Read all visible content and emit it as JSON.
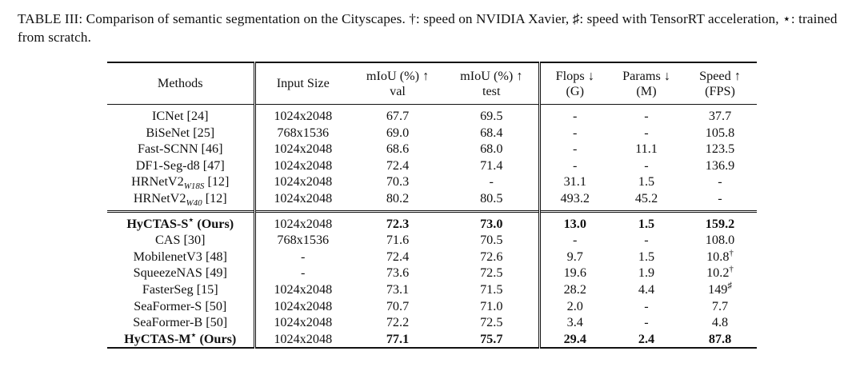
{
  "caption": "TABLE III: Comparison of semantic segmentation on the Cityscapes. †: speed on NVIDIA Xavier, ♯: speed with TensorRT acceleration, ⋆: trained from scratch.",
  "headers": {
    "methods": "Methods",
    "input_size": "Input Size",
    "miou_val_1": "mIoU (%) ↑",
    "miou_val_2": "val",
    "miou_test_1": "mIoU (%) ↑",
    "miou_test_2": "test",
    "flops_1": "Flops ↓",
    "flops_2": "(G)",
    "params_1": "Params ↓",
    "params_2": "(M)",
    "speed_1": "Speed ↑",
    "speed_2": "(FPS)"
  },
  "group1": [
    {
      "method": "ICNet [24]",
      "input": "1024x2048",
      "val": "67.7",
      "test": "69.5",
      "flops": "-",
      "params": "-",
      "speed": "37.7"
    },
    {
      "method": "BiSeNet [25]",
      "input": "768x1536",
      "val": "69.0",
      "test": "68.4",
      "flops": "-",
      "params": "-",
      "speed": "105.8"
    },
    {
      "method": "Fast-SCNN [46]",
      "input": "1024x2048",
      "val": "68.6",
      "test": "68.0",
      "flops": "-",
      "params": "11.1",
      "speed": "123.5"
    },
    {
      "method": "DF1-Seg-d8 [47]",
      "input": "1024x2048",
      "val": "72.4",
      "test": "71.4",
      "flops": "-",
      "params": "-",
      "speed": "136.9"
    },
    {
      "method": "HRNetV2",
      "method_sub": "W18S",
      "method_tail": " [12]",
      "input": "1024x2048",
      "val": "70.3",
      "test": "-",
      "flops": "31.1",
      "params": "1.5",
      "speed": "-"
    },
    {
      "method": "HRNetV2",
      "method_sub": "W40",
      "method_tail": " [12]",
      "input": "1024x2048",
      "val": "80.2",
      "test": "80.5",
      "flops": "493.2",
      "params": "45.2",
      "speed": "-"
    }
  ],
  "group2": [
    {
      "method": "HyCTAS-S",
      "method_sup": "⋆",
      "method_tail": " (Ours)",
      "bold": true,
      "input": "1024x2048",
      "val": "72.3",
      "test": "73.0",
      "flops": "13.0",
      "params": "1.5",
      "speed": "159.2"
    },
    {
      "method": "CAS [30]",
      "input": "768x1536",
      "val": "71.6",
      "test": "70.5",
      "flops": "-",
      "params": "-",
      "speed": "108.0"
    },
    {
      "method": "MobilenetV3 [48]",
      "input": "-",
      "val": "72.4",
      "test": "72.6",
      "flops": "9.7",
      "params": "1.5",
      "speed": "10.8",
      "speed_sup": "†"
    },
    {
      "method": "SqueezeNAS [49]",
      "input": "-",
      "val": "73.6",
      "test": "72.5",
      "flops": "19.6",
      "params": "1.9",
      "speed": "10.2",
      "speed_sup": "†"
    },
    {
      "method": "FasterSeg [15]",
      "input": "1024x2048",
      "val": "73.1",
      "test": "71.5",
      "flops": "28.2",
      "params": "4.4",
      "speed": "149",
      "speed_sup": "♯"
    },
    {
      "method": "SeaFormer-S [50]",
      "input": "1024x2048",
      "val": "70.7",
      "test": "71.0",
      "flops": "2.0",
      "params": "-",
      "speed": "7.7"
    },
    {
      "method": "SeaFormer-B [50]",
      "input": "1024x2048",
      "val": "72.2",
      "test": "72.5",
      "flops": "3.4",
      "params": "-",
      "speed": "4.8"
    },
    {
      "method": "HyCTAS-M",
      "method_sup": "⋆",
      "method_tail": " (Ours)",
      "bold": true,
      "input": "1024x2048",
      "val": "77.1",
      "test": "75.7",
      "flops": "29.4",
      "params": "2.4",
      "speed": "87.8"
    }
  ]
}
